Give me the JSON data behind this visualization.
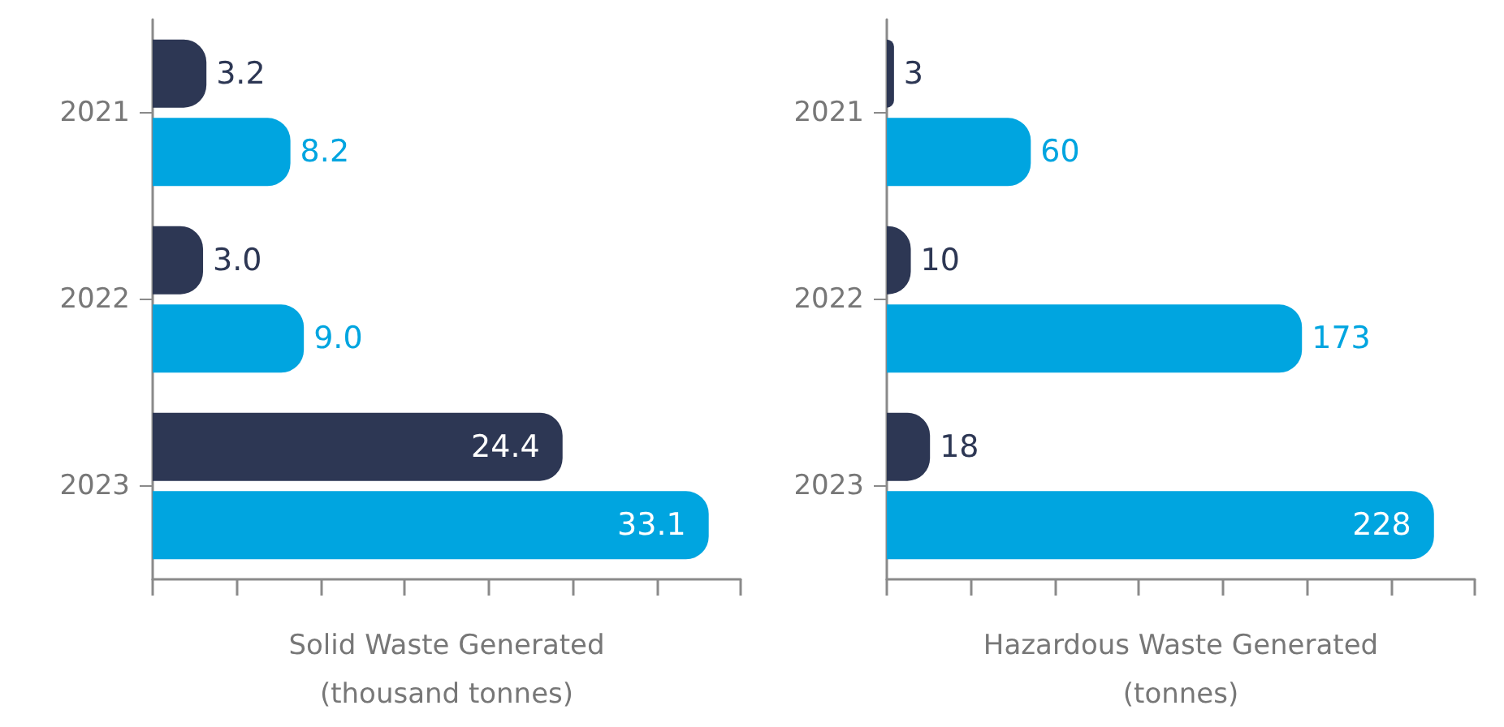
{
  "chart_data": [
    {
      "type": "bar",
      "orientation": "horizontal",
      "xlabel": "Solid Waste Generated\n(thousand tonnes)",
      "categories": [
        "2021",
        "2022",
        "2023"
      ],
      "series": [
        {
          "color": "#2d3754",
          "values": [
            3.2,
            3.0,
            24.4
          ],
          "value_labels": [
            "3.2",
            "3.0",
            "24.4"
          ]
        },
        {
          "color": "#00a5e0",
          "values": [
            8.2,
            9.0,
            33.1
          ],
          "value_labels": [
            "8.2",
            "9.0",
            "33.1"
          ]
        }
      ],
      "xlim": [
        0,
        35
      ],
      "xticks": [
        {
          "value": 0,
          "label": null
        },
        {
          "value": 5,
          "label": null
        },
        {
          "value": 10,
          "label": null
        },
        {
          "value": 15,
          "label": null
        },
        {
          "value": 20,
          "label": null
        },
        {
          "value": 25,
          "label": null
        },
        {
          "value": 30,
          "label": null
        },
        {
          "value": 35,
          "label": null
        }
      ],
      "tick_labels": "y"
    },
    {
      "type": "bar",
      "orientation": "horizontal",
      "xlabel": "Hazardous Waste Generated\n(tonnes)",
      "categories": [
        "2021",
        "2022",
        "2023"
      ],
      "series": [
        {
          "color": "#2d3754",
          "values": [
            3,
            10,
            18
          ]
        },
        {
          "color": "#00a5e0",
          "values": [
            60,
            173,
            228
          ]
        }
      ],
      "xlim": [
        0,
        245
      ],
      "xticks": [
        {
          "value": 0,
          "label": null
        },
        {
          "value": 35,
          "label": null
        },
        {
          "value": 70,
          "label": null
        },
        {
          "value": 105,
          "label": null
        },
        {
          "value": 140,
          "label": null
        },
        {
          "value": 175,
          "label": null
        },
        {
          "value": 210,
          "label": null
        },
        {
          "value": 245,
          "label": null
        }
      ],
      "data_labels": true,
      "tick_labels": "y"
    }
  ]
}
